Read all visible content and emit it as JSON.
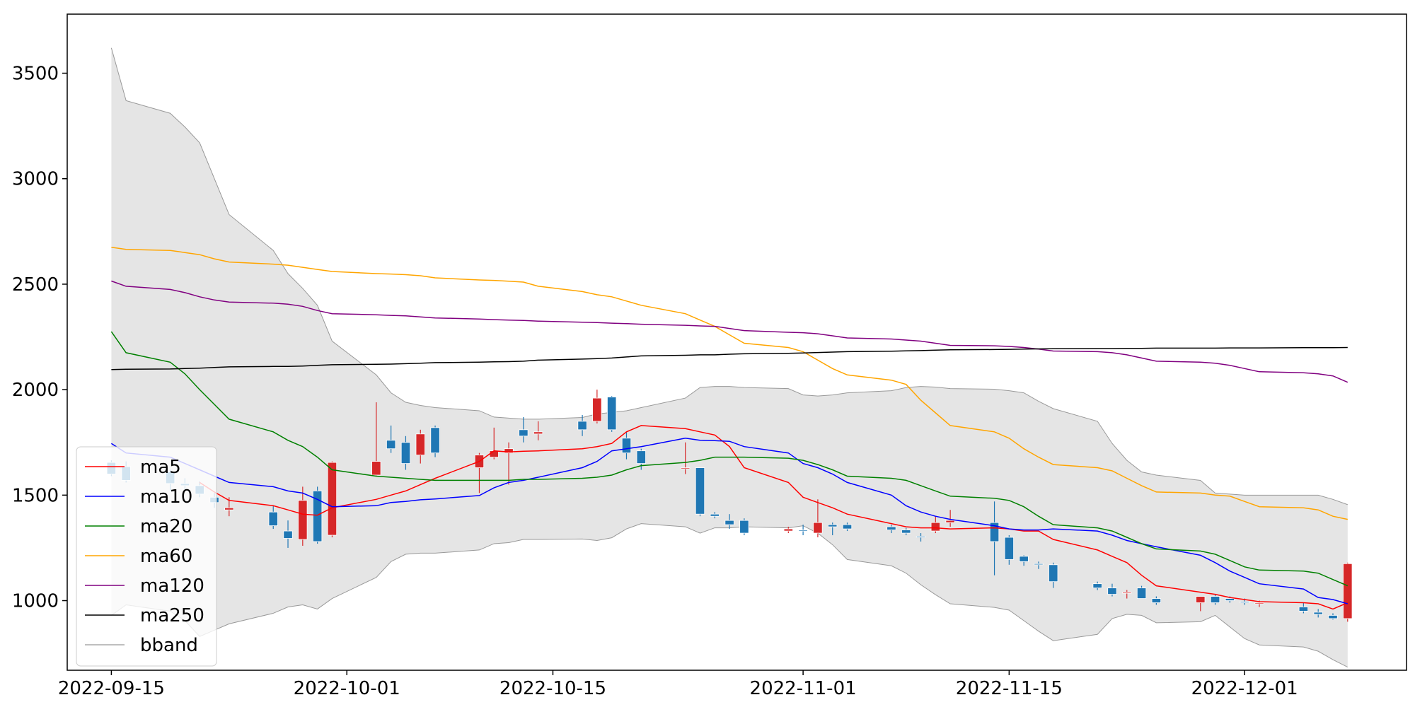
{
  "chart_data": {
    "type": "candlestick",
    "x_ticks": [
      "2022-09-15",
      "2022-10-01",
      "2022-10-15",
      "2022-11-01",
      "2022-11-15",
      "2022-12-01"
    ],
    "y_ticks": [
      1000,
      1500,
      2000,
      2500,
      3000,
      3500
    ],
    "ylim": [
      670,
      3780
    ],
    "xlim": [
      "2022-09-12",
      "2022-12-12"
    ],
    "grid": false,
    "legend_position": "lower-left",
    "colors": {
      "up": "#d62728",
      "down": "#1f77b4",
      "ma5": "#ff0000",
      "ma10": "#0000ff",
      "ma20": "#008000",
      "ma60": "#ffa500",
      "ma120": "#800080",
      "ma250": "#000000",
      "bband_fill": "#e5e5e5",
      "bband_edge": "#999999"
    },
    "dates": [
      "2022-09-15",
      "2022-09-16",
      "2022-09-19",
      "2022-09-20",
      "2022-09-21",
      "2022-09-22",
      "2022-09-23",
      "2022-09-26",
      "2022-09-27",
      "2022-09-28",
      "2022-09-29",
      "2022-09-30",
      "2022-10-03",
      "2022-10-04",
      "2022-10-05",
      "2022-10-06",
      "2022-10-07",
      "2022-10-10",
      "2022-10-11",
      "2022-10-12",
      "2022-10-13",
      "2022-10-14",
      "2022-10-17",
      "2022-10-18",
      "2022-10-19",
      "2022-10-20",
      "2022-10-21",
      "2022-10-24",
      "2022-10-25",
      "2022-10-26",
      "2022-10-27",
      "2022-10-28",
      "2022-10-31",
      "2022-11-01",
      "2022-11-02",
      "2022-11-03",
      "2022-11-04",
      "2022-11-07",
      "2022-11-08",
      "2022-11-09",
      "2022-11-10",
      "2022-11-11",
      "2022-11-14",
      "2022-11-15",
      "2022-11-16",
      "2022-11-17",
      "2022-11-18",
      "2022-11-21",
      "2022-11-22",
      "2022-11-23",
      "2022-11-24",
      "2022-11-25",
      "2022-11-28",
      "2022-11-29",
      "2022-11-30",
      "2022-12-01",
      "2022-12-02",
      "2022-12-05",
      "2022-12-06",
      "2022-12-07",
      "2022-12-08"
    ],
    "ohlc": [
      [
        1655,
        1665,
        1590,
        1600
      ],
      [
        1635,
        1660,
        1560,
        1570
      ],
      [
        1610,
        1620,
        1520,
        1555
      ],
      [
        1555,
        1580,
        1520,
        1545
      ],
      [
        1545,
        1565,
        1490,
        1505
      ],
      [
        1490,
        1510,
        1440,
        1465
      ],
      [
        1430,
        1490,
        1400,
        1440
      ],
      [
        1420,
        1450,
        1340,
        1355
      ],
      [
        1330,
        1380,
        1250,
        1295
      ],
      [
        1290,
        1540,
        1260,
        1475
      ],
      [
        1520,
        1540,
        1270,
        1280
      ],
      [
        1310,
        1660,
        1300,
        1655
      ],
      [
        1595,
        1940,
        1590,
        1660
      ],
      [
        1760,
        1830,
        1700,
        1720
      ],
      [
        1750,
        1780,
        1620,
        1650
      ],
      [
        1690,
        1810,
        1650,
        1790
      ],
      [
        1820,
        1830,
        1680,
        1700
      ],
      [
        1630,
        1700,
        1510,
        1690
      ],
      [
        1680,
        1820,
        1670,
        1710
      ],
      [
        1700,
        1750,
        1550,
        1720
      ],
      [
        1810,
        1870,
        1750,
        1780
      ],
      [
        1790,
        1850,
        1760,
        1800
      ],
      [
        1850,
        1880,
        1780,
        1810
      ],
      [
        1850,
        2000,
        1840,
        1960
      ],
      [
        1965,
        1970,
        1800,
        1810
      ],
      [
        1770,
        1800,
        1670,
        1700
      ],
      [
        1710,
        1720,
        1620,
        1650
      ],
      [
        1630,
        1750,
        1600,
        1630
      ],
      [
        1630,
        1630,
        1400,
        1410
      ],
      [
        1410,
        1420,
        1390,
        1400
      ],
      [
        1380,
        1410,
        1340,
        1360
      ],
      [
        1380,
        1390,
        1310,
        1320
      ],
      [
        1330,
        1350,
        1320,
        1340
      ],
      [
        1335,
        1360,
        1310,
        1330
      ],
      [
        1320,
        1480,
        1300,
        1370
      ],
      [
        1360,
        1370,
        1310,
        1350
      ],
      [
        1360,
        1370,
        1330,
        1340
      ],
      [
        1350,
        1360,
        1320,
        1335
      ],
      [
        1335,
        1345,
        1310,
        1320
      ],
      [
        1305,
        1320,
        1280,
        1300
      ],
      [
        1330,
        1400,
        1320,
        1370
      ],
      [
        1370,
        1430,
        1350,
        1380
      ],
      [
        1370,
        1470,
        1120,
        1280
      ],
      [
        1300,
        1310,
        1170,
        1195
      ],
      [
        1210,
        1215,
        1165,
        1185
      ],
      [
        1175,
        1185,
        1150,
        1170
      ],
      [
        1170,
        1180,
        1060,
        1090
      ],
      [
        1080,
        1090,
        1050,
        1060
      ],
      [
        1060,
        1080,
        1020,
        1030
      ],
      [
        1040,
        1050,
        1010,
        1040
      ],
      [
        1060,
        1070,
        1010,
        1010
      ],
      [
        1010,
        1020,
        980,
        990
      ],
      [
        990,
        1020,
        950,
        1020
      ],
      [
        1020,
        1030,
        980,
        990
      ],
      [
        1010,
        1020,
        990,
        1000
      ],
      [
        995,
        1010,
        980,
        990
      ],
      [
        990,
        1000,
        970,
        990
      ],
      [
        970,
        990,
        940,
        950
      ],
      [
        945,
        960,
        920,
        935
      ],
      [
        930,
        940,
        910,
        915
      ],
      [
        915,
        1180,
        900,
        1175
      ]
    ],
    "series": [
      {
        "name": "ma5",
        "values": [
          null,
          null,
          null,
          null,
          1560,
          1515,
          1475,
          1450,
          1430,
          1410,
          1405,
          1440,
          1480,
          1500,
          1520,
          1550,
          1580,
          1660,
          1710,
          1705,
          1708,
          1710,
          1720,
          1730,
          1745,
          1800,
          1830,
          1815,
          1800,
          1785,
          1730,
          1630,
          1560,
          1490,
          1465,
          1440,
          1410,
          1365,
          1350,
          1345,
          1345,
          1340,
          1345,
          1340,
          1330,
          1330,
          1290,
          1240,
          1210,
          1180,
          1120,
          1070,
          1040,
          1030,
          1015,
          1005,
          995,
          990,
          985,
          960,
          990
        ]
      },
      {
        "name": "ma10",
        "values": [
          1745,
          1700,
          1680,
          1650,
          1620,
          1590,
          1560,
          1540,
          1520,
          1510,
          1480,
          1445,
          1450,
          1465,
          1470,
          1478,
          1482,
          1498,
          1535,
          1560,
          1570,
          1585,
          1630,
          1660,
          1710,
          1720,
          1730,
          1770,
          1760,
          1758,
          1755,
          1730,
          1700,
          1650,
          1630,
          1600,
          1560,
          1500,
          1450,
          1420,
          1400,
          1385,
          1355,
          1340,
          1335,
          1335,
          1340,
          1330,
          1310,
          1285,
          1270,
          1255,
          1215,
          1180,
          1140,
          1110,
          1080,
          1055,
          1015,
          1005,
          985
        ]
      },
      {
        "name": "ma20",
        "values": [
          2275,
          2175,
          2130,
          2075,
          2000,
          1930,
          1860,
          1800,
          1760,
          1730,
          1680,
          1620,
          1590,
          1585,
          1580,
          1575,
          1570,
          1570,
          1570,
          1570,
          1575,
          1575,
          1580,
          1585,
          1595,
          1620,
          1640,
          1655,
          1665,
          1680,
          1680,
          1680,
          1675,
          1665,
          1645,
          1620,
          1590,
          1580,
          1570,
          1545,
          1520,
          1495,
          1485,
          1475,
          1445,
          1400,
          1360,
          1345,
          1330,
          1300,
          1270,
          1245,
          1235,
          1220,
          1190,
          1160,
          1145,
          1140,
          1130,
          1100,
          1070
        ]
      },
      {
        "name": "ma60",
        "values": [
          2675,
          2665,
          2660,
          2650,
          2640,
          2620,
          2605,
          2595,
          2590,
          2580,
          2570,
          2560,
          2550,
          2548,
          2545,
          2540,
          2530,
          2520,
          2518,
          2514,
          2510,
          2490,
          2465,
          2450,
          2440,
          2420,
          2400,
          2360,
          2330,
          2300,
          2260,
          2220,
          2200,
          2180,
          2140,
          2100,
          2070,
          2045,
          2025,
          1950,
          1890,
          1830,
          1800,
          1770,
          1720,
          1680,
          1645,
          1630,
          1615,
          1580,
          1545,
          1515,
          1510,
          1500,
          1495,
          1470,
          1445,
          1440,
          1430,
          1400,
          1385
        ]
      },
      {
        "name": "ma120",
        "values": [
          2515,
          2490,
          2475,
          2460,
          2440,
          2425,
          2415,
          2410,
          2405,
          2395,
          2375,
          2360,
          2355,
          2352,
          2350,
          2345,
          2340,
          2335,
          2332,
          2330,
          2328,
          2325,
          2320,
          2318,
          2315,
          2313,
          2310,
          2305,
          2302,
          2300,
          2290,
          2280,
          2272,
          2270,
          2265,
          2255,
          2245,
          2240,
          2235,
          2230,
          2220,
          2210,
          2208,
          2205,
          2200,
          2192,
          2183,
          2180,
          2175,
          2165,
          2150,
          2135,
          2130,
          2125,
          2115,
          2100,
          2085,
          2080,
          2075,
          2065,
          2035
        ]
      },
      {
        "name": "ma250",
        "values": [
          2095,
          2097,
          2098,
          2100,
          2102,
          2105,
          2108,
          2110,
          2110,
          2112,
          2115,
          2118,
          2120,
          2121,
          2123,
          2125,
          2128,
          2130,
          2132,
          2133,
          2135,
          2140,
          2145,
          2147,
          2150,
          2155,
          2160,
          2163,
          2165,
          2165,
          2168,
          2170,
          2172,
          2174,
          2176,
          2178,
          2180,
          2182,
          2184,
          2185,
          2187,
          2189,
          2190,
          2191,
          2192,
          2193,
          2194,
          2195,
          2195,
          2196,
          2196,
          2197,
          2197,
          2197,
          2198,
          2198,
          2198,
          2199,
          2199,
          2199,
          2200
        ]
      }
    ],
    "bband_upper": [
      3620,
      3370,
      3310,
      3245,
      3170,
      3000,
      2830,
      2660,
      2550,
      2480,
      2400,
      2230,
      2070,
      1985,
      1940,
      1925,
      1915,
      1900,
      1870,
      1865,
      1860,
      1860,
      1868,
      1885,
      1892,
      1900,
      1915,
      1960,
      2010,
      2015,
      2015,
      2010,
      2005,
      1975,
      1970,
      1975,
      1985,
      1995,
      2010,
      2015,
      2012,
      2005,
      2002,
      1995,
      1985,
      1945,
      1910,
      1850,
      1745,
      1665,
      1610,
      1595,
      1570,
      1510,
      1505,
      1500,
      1500,
      1500,
      1500,
      1480,
      1455
    ]
  },
  "legend": {
    "entries": [
      {
        "name": "ma5",
        "color": "#ff0000"
      },
      {
        "name": "ma10",
        "color": "#0000ff"
      },
      {
        "name": "ma20",
        "color": "#008000"
      },
      {
        "name": "ma60",
        "color": "#ffa500"
      },
      {
        "name": "ma120",
        "color": "#800080"
      },
      {
        "name": "ma250",
        "color": "#000000"
      },
      {
        "name": "bband",
        "color": "#aaaaaa"
      }
    ]
  }
}
